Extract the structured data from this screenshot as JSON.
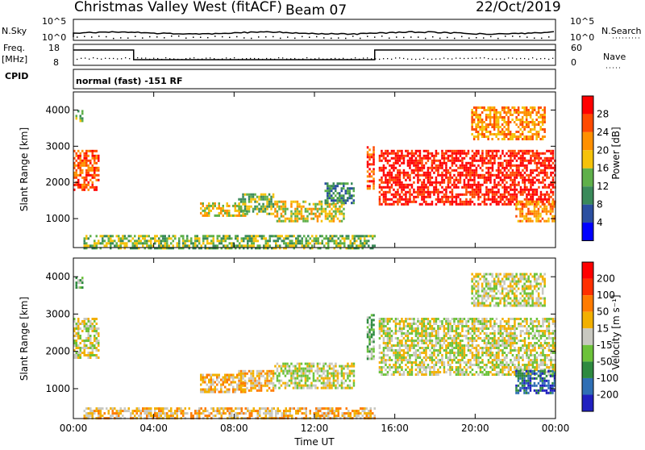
{
  "header": {
    "station": "Christmas Valley West (fitACF)",
    "beam": "Beam 07",
    "date": "22/Oct/2019"
  },
  "mini_panels": {
    "nsky_label": "N.Sky",
    "nsky_ticks": [
      "10^5",
      "10^0"
    ],
    "nsearch_label": "N.Search",
    "nsearch_ticks": [
      "10^5",
      "10^0"
    ],
    "freq_label_1": "Freq.",
    "freq_label_2": "[MHz]",
    "freq_ticks": [
      "18",
      "8"
    ],
    "nave_label": "Nave",
    "nave_ticks": [
      "60",
      "0"
    ],
    "cpid_label": "CPID",
    "mode_text": "normal (fast) -151 RF"
  },
  "colors": {
    "power_scale": [
      "#0000ff",
      "#2b4fa0",
      "#3a8a5a",
      "#5fb04a",
      "#f5c20a",
      "#ff9000",
      "#ff4a00",
      "#ff0000"
    ],
    "velocity_scale": [
      "#2020c0",
      "#2f6fb5",
      "#2e8a40",
      "#6cc23a",
      "#c8c8c0",
      "#f2b000",
      "#ff7b00",
      "#ff3000",
      "#ff0000"
    ],
    "ground_grey": "#c8c8c0"
  },
  "chart_data": [
    {
      "type": "heatmap",
      "name": "Power panel",
      "ylabel": "Slant Range [km]",
      "yticks": [
        "1000",
        "2000",
        "3000",
        "4000"
      ],
      "xticks": [
        "00:00",
        "04:00",
        "08:00",
        "12:00",
        "16:00",
        "20:00",
        "00:00"
      ],
      "colorbar_label": "Power [dB]",
      "colorbar_ticks": [
        "4",
        "8",
        "12",
        "16",
        "20",
        "24",
        "28"
      ],
      "xlim_hours": [
        0,
        24
      ],
      "ylim_km": [
        200,
        4500
      ],
      "regions": [
        {
          "t0": 0.0,
          "t1": 1.3,
          "r0": 1800,
          "r1": 2900,
          "level": 6
        },
        {
          "t0": 0.1,
          "t1": 0.5,
          "r0": 3700,
          "r1": 4000,
          "level": 3
        },
        {
          "t0": 6.3,
          "t1": 8.6,
          "r0": 1050,
          "r1": 1450,
          "level": 4
        },
        {
          "t0": 8.2,
          "t1": 10.0,
          "r0": 1100,
          "r1": 1700,
          "level": 3
        },
        {
          "t0": 10.0,
          "t1": 13.5,
          "r0": 900,
          "r1": 1500,
          "level": 4
        },
        {
          "t0": 12.5,
          "t1": 14.0,
          "r0": 1400,
          "r1": 2000,
          "level": 2
        },
        {
          "t0": 14.6,
          "t1": 15.0,
          "r0": 1800,
          "r1": 3000,
          "level": 6
        },
        {
          "t0": 15.2,
          "t1": 24.0,
          "r0": 1400,
          "r1": 2900,
          "level": 7
        },
        {
          "t0": 22.0,
          "t1": 24.0,
          "r0": 900,
          "r1": 1500,
          "level": 5
        },
        {
          "t0": 19.8,
          "t1": 23.5,
          "r0": 3200,
          "r1": 4100,
          "level": 5
        },
        {
          "t0": 0.5,
          "t1": 15.0,
          "r0": 200,
          "r1": 550,
          "level": 3
        }
      ]
    },
    {
      "type": "heatmap",
      "name": "Velocity panel",
      "ylabel": "Slant Range [km]",
      "yticks": [
        "1000",
        "2000",
        "3000",
        "4000"
      ],
      "xticks": [
        "00:00",
        "04:00",
        "08:00",
        "12:00",
        "16:00",
        "20:00",
        "00:00"
      ],
      "xlabel": "Time UT",
      "colorbar_label": "Velocity [m s⁻¹]",
      "colorbar_ticks": [
        "-200",
        "-100",
        "-50",
        "-15",
        "15",
        "50",
        "100",
        "200"
      ],
      "xlim_hours": [
        0,
        24
      ],
      "ylim_km": [
        200,
        4500
      ],
      "regions": [
        {
          "t0": 0.0,
          "t1": 1.3,
          "r0": 1800,
          "r1": 2900,
          "level": 4
        },
        {
          "t0": 0.1,
          "t1": 0.5,
          "r0": 3700,
          "r1": 4000,
          "level": 3
        },
        {
          "t0": 6.3,
          "t1": 8.6,
          "r0": 900,
          "r1": 1400,
          "level": 5
        },
        {
          "t0": 8.2,
          "t1": 10.0,
          "r0": 950,
          "r1": 1500,
          "level": 5
        },
        {
          "t0": 10.0,
          "t1": 14.0,
          "r0": 1000,
          "r1": 1700,
          "level": 4
        },
        {
          "t0": 14.6,
          "t1": 15.0,
          "r0": 1800,
          "r1": 3000,
          "level": 3
        },
        {
          "t0": 15.2,
          "t1": 24.0,
          "r0": 1400,
          "r1": 2900,
          "level": 4
        },
        {
          "t0": 22.0,
          "t1": 24.0,
          "r0": 900,
          "r1": 1500,
          "level": 1
        },
        {
          "t0": 19.8,
          "t1": 23.5,
          "r0": 3200,
          "r1": 4100,
          "level": 4
        },
        {
          "t0": 0.5,
          "t1": 15.0,
          "r0": 200,
          "r1": 500,
          "level": 5
        }
      ]
    }
  ]
}
